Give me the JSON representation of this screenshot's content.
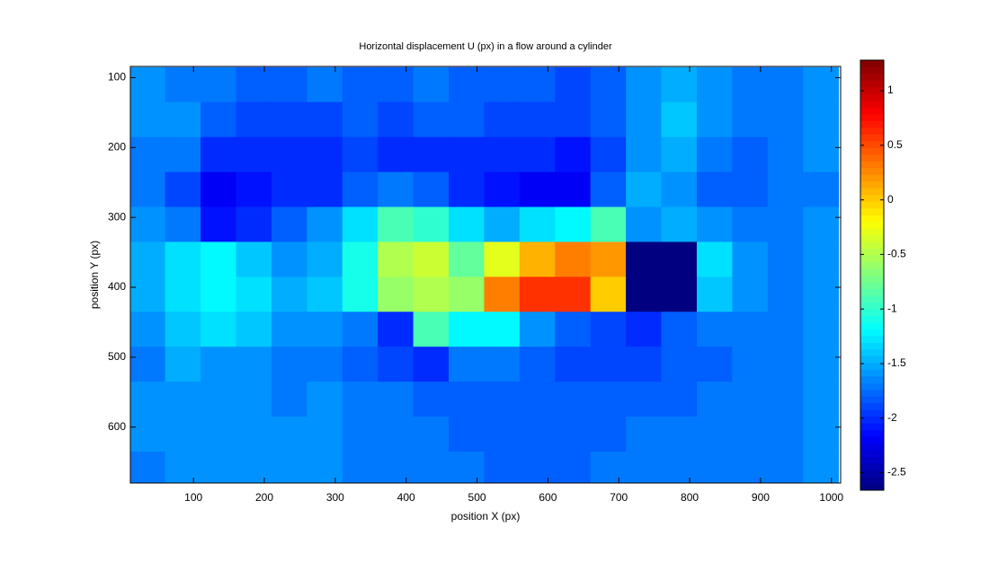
{
  "chart_data": {
    "type": "heatmap",
    "title": "Horizontal displacement U (px) in a flow around a cylinder",
    "x_label": "position X (px)",
    "y_label": "position Y (px)",
    "colormap": "jet",
    "x": [
      35,
      85,
      135,
      185,
      235,
      285,
      335,
      385,
      435,
      485,
      535,
      585,
      635,
      685,
      735,
      785,
      835,
      885,
      935,
      985
    ],
    "y": [
      110,
      160,
      210,
      260,
      310,
      360,
      410,
      460,
      510,
      560,
      610,
      660
    ],
    "values": [
      [
        -1.6,
        -1.7,
        -1.7,
        -1.8,
        -1.8,
        -1.7,
        -1.8,
        -1.8,
        -1.7,
        -1.8,
        -1.8,
        -1.8,
        -1.9,
        -1.8,
        -1.6,
        -1.5,
        -1.6,
        -1.7,
        -1.7,
        -1.6
      ],
      [
        -1.6,
        -1.6,
        -1.8,
        -1.9,
        -1.9,
        -1.9,
        -1.8,
        -1.9,
        -1.8,
        -1.8,
        -1.9,
        -1.9,
        -1.9,
        -1.8,
        -1.6,
        -1.4,
        -1.6,
        -1.7,
        -1.7,
        -1.6
      ],
      [
        -1.7,
        -1.7,
        -2.0,
        -2.0,
        -2.0,
        -2.0,
        -1.9,
        -2.0,
        -2.0,
        -2.0,
        -2.0,
        -2.0,
        -2.1,
        -1.9,
        -1.6,
        -1.5,
        -1.7,
        -1.8,
        -1.7,
        -1.6
      ],
      [
        -1.7,
        -1.9,
        -2.2,
        -2.1,
        -2.0,
        -2.0,
        -1.8,
        -1.7,
        -1.8,
        -2.0,
        -2.1,
        -2.2,
        -2.2,
        -1.8,
        -1.5,
        -1.6,
        -1.8,
        -1.8,
        -1.7,
        -1.7
      ],
      [
        -1.6,
        -1.7,
        -2.1,
        -2.0,
        -1.8,
        -1.6,
        -1.3,
        -0.9,
        -1.0,
        -1.3,
        -1.5,
        -1.3,
        -1.2,
        -0.9,
        -1.6,
        -1.5,
        -1.6,
        -1.7,
        -1.7,
        -1.6
      ],
      [
        -1.5,
        -1.3,
        -1.2,
        -1.4,
        -1.6,
        -1.5,
        -1.1,
        -0.5,
        -0.4,
        -0.8,
        -0.3,
        0.1,
        0.3,
        0.2,
        -2.66,
        -2.66,
        -1.3,
        -1.6,
        -1.7,
        -1.6
      ],
      [
        -1.5,
        -1.3,
        -1.2,
        -1.3,
        -1.5,
        -1.4,
        -1.1,
        -0.6,
        -0.5,
        -0.6,
        0.3,
        0.6,
        0.6,
        0.0,
        -2.66,
        -2.66,
        -1.4,
        -1.6,
        -1.7,
        -1.6
      ],
      [
        -1.6,
        -1.4,
        -1.3,
        -1.4,
        -1.6,
        -1.6,
        -1.7,
        -2.0,
        -0.9,
        -1.2,
        -1.2,
        -1.6,
        -1.8,
        -1.9,
        -2.0,
        -1.8,
        -1.7,
        -1.7,
        -1.7,
        -1.6
      ],
      [
        -1.7,
        -1.5,
        -1.6,
        -1.6,
        -1.7,
        -1.7,
        -1.8,
        -1.9,
        -2.0,
        -1.7,
        -1.7,
        -1.8,
        -1.9,
        -1.9,
        -1.9,
        -1.8,
        -1.8,
        -1.7,
        -1.7,
        -1.6
      ],
      [
        -1.6,
        -1.6,
        -1.6,
        -1.6,
        -1.7,
        -1.6,
        -1.7,
        -1.7,
        -1.8,
        -1.8,
        -1.8,
        -1.8,
        -1.8,
        -1.8,
        -1.8,
        -1.8,
        -1.7,
        -1.7,
        -1.7,
        -1.6
      ],
      [
        -1.6,
        -1.6,
        -1.6,
        -1.6,
        -1.6,
        -1.6,
        -1.7,
        -1.7,
        -1.7,
        -1.8,
        -1.8,
        -1.8,
        -1.8,
        -1.8,
        -1.7,
        -1.7,
        -1.7,
        -1.7,
        -1.7,
        -1.6
      ],
      [
        -1.7,
        -1.6,
        -1.6,
        -1.6,
        -1.6,
        -1.6,
        -1.7,
        -1.7,
        -1.7,
        -1.7,
        -1.8,
        -1.8,
        -1.8,
        -1.7,
        -1.7,
        -1.7,
        -1.7,
        -1.7,
        -1.7,
        -1.6
      ]
    ],
    "xlim": [
      11,
      1013
    ],
    "ylim": [
      84,
      680
    ],
    "y_reversed": true,
    "xticks": [
      100,
      200,
      300,
      400,
      500,
      600,
      700,
      800,
      900,
      1000
    ],
    "yticks": [
      100,
      200,
      300,
      400,
      500,
      600
    ],
    "clim": [
      -2.66,
      1.28
    ],
    "cticks": [
      1,
      0.5,
      0,
      -0.5,
      -1,
      -1.5,
      -2,
      -2.5
    ]
  }
}
